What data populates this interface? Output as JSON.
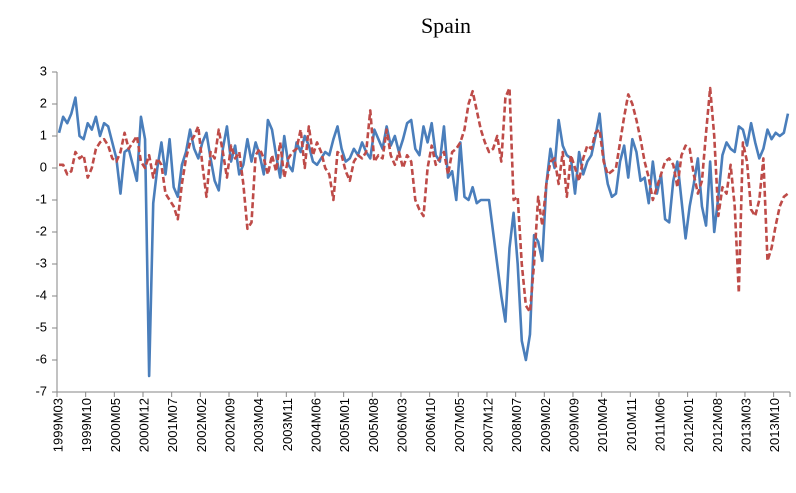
{
  "chart_data": {
    "type": "line",
    "title": "Spain",
    "categories": [
      "1999M03",
      null,
      null,
      null,
      null,
      null,
      null,
      "1999M10",
      null,
      null,
      null,
      null,
      null,
      null,
      "2000M05",
      null,
      null,
      null,
      null,
      null,
      null,
      "2000M12",
      null,
      null,
      null,
      null,
      null,
      null,
      "2001M07",
      null,
      null,
      null,
      null,
      null,
      null,
      "2002M02",
      null,
      null,
      null,
      null,
      null,
      null,
      "2002M09",
      null,
      null,
      null,
      null,
      null,
      null,
      "2003M04",
      null,
      null,
      null,
      null,
      null,
      null,
      "2003M11",
      null,
      null,
      null,
      null,
      null,
      null,
      "2004M06",
      null,
      null,
      null,
      null,
      null,
      null,
      "2005M01",
      null,
      null,
      null,
      null,
      null,
      null,
      "2005M08",
      null,
      null,
      null,
      null,
      null,
      null,
      "2006M03",
      null,
      null,
      null,
      null,
      null,
      null,
      "2006M10",
      null,
      null,
      null,
      null,
      null,
      null,
      "2007M05",
      null,
      null,
      null,
      null,
      null,
      null,
      "2007M12",
      null,
      null,
      null,
      null,
      null,
      null,
      "2008M07",
      null,
      null,
      null,
      null,
      null,
      null,
      "2009M02",
      null,
      null,
      null,
      null,
      null,
      null,
      "2009M09",
      null,
      null,
      null,
      null,
      null,
      null,
      "2010M04",
      null,
      null,
      null,
      null,
      null,
      null,
      "2010M11",
      null,
      null,
      null,
      null,
      null,
      null,
      "2011M06",
      null,
      null,
      null,
      null,
      null,
      null,
      "2012M01",
      null,
      null,
      null,
      null,
      null,
      null,
      "2012M08",
      null,
      null,
      null,
      null,
      null,
      null,
      "2013M03",
      null,
      null,
      null,
      null,
      null,
      null,
      "2013M10",
      null,
      null,
      null
    ],
    "series": [
      {
        "color": "#4a7ebb",
        "dash": false,
        "values": [
          1.1,
          1.6,
          1.4,
          1.7,
          2.2,
          1.0,
          0.9,
          1.4,
          1.2,
          1.6,
          1.0,
          1.4,
          1.3,
          0.8,
          0.3,
          -0.8,
          0.5,
          0.6,
          0.1,
          -0.4,
          1.6,
          0.9,
          -6.5,
          -1.1,
          0.0,
          0.8,
          -0.2,
          0.9,
          -0.6,
          -0.9,
          0.1,
          0.5,
          1.2,
          0.6,
          0.3,
          0.8,
          1.1,
          0.3,
          -0.4,
          -0.7,
          0.6,
          1.3,
          0.2,
          0.7,
          -0.2,
          0.1,
          0.9,
          0.2,
          0.8,
          0.4,
          -0.2,
          1.5,
          1.2,
          0.4,
          -0.3,
          1.0,
          0.1,
          -0.1,
          0.8,
          0.5,
          1.0,
          0.7,
          0.2,
          0.1,
          0.3,
          0.5,
          0.4,
          0.9,
          1.3,
          0.6,
          0.2,
          0.3,
          0.6,
          0.4,
          0.8,
          0.5,
          0.3,
          1.2,
          0.9,
          0.6,
          1.3,
          0.7,
          1.0,
          0.5,
          0.9,
          1.4,
          1.5,
          0.6,
          0.4,
          1.3,
          0.8,
          1.4,
          0.4,
          0.2,
          1.3,
          -0.3,
          -0.1,
          -1.0,
          0.8,
          -0.9,
          -1.0,
          -0.6,
          -1.1,
          -1.0,
          -1.0,
          -1.0,
          -2.0,
          -3.0,
          -4.0,
          -4.8,
          -2.5,
          -1.4,
          -3.0,
          -5.4,
          -6.0,
          -5.2,
          -2.1,
          -2.3,
          -2.9,
          -0.5,
          0.6,
          0.0,
          1.5,
          0.7,
          0.4,
          0.3,
          -0.8,
          0.5,
          -0.2,
          0.2,
          0.4,
          1.0,
          1.7,
          0.3,
          -0.5,
          -0.9,
          -0.8,
          0.2,
          0.7,
          -0.3,
          0.9,
          0.5,
          -0.4,
          -0.3,
          -1.1,
          0.2,
          -0.8,
          -0.2,
          -1.6,
          -1.7,
          -0.4,
          0.2,
          -1.0,
          -2.2,
          -1.2,
          -0.5,
          0.3,
          -1.2,
          -1.8,
          0.2,
          -2.0,
          -0.9,
          0.4,
          0.8,
          0.6,
          0.5,
          1.3,
          1.2,
          0.7,
          1.4,
          0.8,
          0.3,
          0.6,
          1.2,
          0.9,
          1.1,
          1.0,
          1.1,
          1.7
        ]
      },
      {
        "color": "#be4b48",
        "dash": true,
        "values": [
          0.1,
          0.1,
          -0.2,
          -0.1,
          0.5,
          0.3,
          0.4,
          -0.3,
          0.0,
          0.6,
          0.8,
          0.9,
          0.7,
          0.3,
          0.2,
          0.5,
          1.1,
          0.6,
          0.8,
          1.0,
          0.2,
          0.0,
          0.4,
          -0.3,
          0.3,
          0.1,
          -0.8,
          -1.0,
          -1.2,
          -1.6,
          -0.5,
          0.3,
          0.8,
          1.0,
          1.3,
          0.1,
          -0.9,
          0.5,
          0.3,
          1.2,
          0.5,
          -0.3,
          0.7,
          0.3,
          0.5,
          -0.5,
          -1.9,
          -1.7,
          0.4,
          0.6,
          0.3,
          -0.2,
          0.4,
          -0.1,
          0.8,
          -0.3,
          0.3,
          0.5,
          0.6,
          1.2,
          0.0,
          1.3,
          0.4,
          0.8,
          0.5,
          0.0,
          -0.2,
          -1.0,
          0.5,
          0.4,
          -0.1,
          -0.4,
          0.2,
          0.4,
          0.3,
          0.5,
          1.8,
          0.2,
          0.4,
          0.3,
          1.2,
          0.4,
          0.1,
          0.5,
          0.0,
          0.4,
          0.2,
          -1.0,
          -1.3,
          -1.5,
          0.0,
          0.7,
          0.1,
          0.3,
          0.5,
          -0.2,
          0.5,
          0.6,
          0.8,
          1.2,
          2.0,
          2.4,
          1.8,
          1.2,
          0.8,
          0.5,
          0.6,
          1.0,
          0.2,
          2.2,
          2.5,
          -1.0,
          -0.9,
          -3.0,
          -4.3,
          -4.5,
          -3.0,
          -0.9,
          -1.8,
          -0.5,
          0.2,
          0.3,
          -0.5,
          0.5,
          -0.9,
          0.4,
          0.0,
          -0.4,
          0.3,
          0.7,
          0.6,
          1.1,
          1.2,
          0.2,
          -0.2,
          -0.1,
          0.0,
          0.8,
          1.6,
          2.3,
          2.0,
          1.5,
          0.9,
          0.2,
          -0.3,
          -1.0,
          -0.6,
          -0.2,
          0.2,
          0.3,
          0.1,
          -0.6,
          0.4,
          0.7,
          0.6,
          -0.2,
          -0.8,
          -0.4,
          1.1,
          2.5,
          1.0,
          -1.5,
          -0.6,
          -0.8,
          0.1,
          -1.2,
          -3.9,
          0.8,
          0.2,
          -1.3,
          -1.5,
          -1.0,
          0.3,
          -2.9,
          -2.5,
          -1.8,
          -1.2,
          -0.9,
          -0.8
        ]
      }
    ],
    "ylim": [
      -7,
      3
    ],
    "yticks": [
      -7,
      -6,
      -5,
      -4,
      -3,
      -2,
      -1,
      0,
      1,
      2,
      3
    ],
    "grid": false
  }
}
